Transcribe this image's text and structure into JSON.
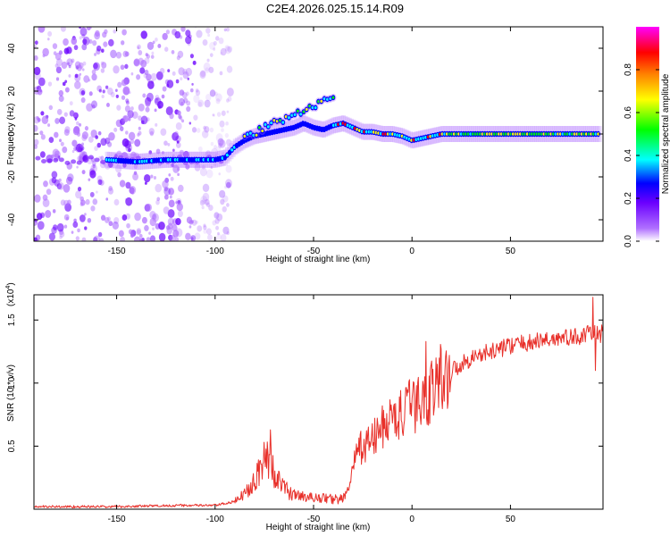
{
  "page": {
    "title": "C2E4.2026.025.15.14.R09"
  },
  "chart_data": [
    {
      "type": "heatmap",
      "title": "C2E4.2026.025.15.14.R09",
      "xlabel": "Height of straight line (km)",
      "ylabel": "Frequency (Hz)",
      "xlim": [
        -192,
        97
      ],
      "ylim": [
        -50,
        50
      ],
      "xticks": [
        -150,
        -100,
        -50,
        0,
        50
      ],
      "xtick_labels": [
        "-150",
        "-100",
        "-50",
        "0",
        "50"
      ],
      "yticks": [
        -40,
        -20,
        0,
        20,
        40
      ],
      "ytick_labels": [
        "-40",
        "-20",
        "0",
        "20",
        "40"
      ],
      "colorbar": {
        "label": "Normalized spectral amplitude",
        "range": [
          0,
          1
        ],
        "ticks": [
          0.0,
          0.2,
          0.4,
          0.6,
          0.8
        ],
        "tick_labels": [
          "0.0",
          "0.2",
          "0.4",
          "0.6",
          "0.8"
        ],
        "colormap": [
          "#ffffff",
          "#b070ff",
          "#6a00ff",
          "#0000ff",
          "#00ffff",
          "#00ff00",
          "#ffff00",
          "#ff8000",
          "#ff0000",
          "#ff00ff"
        ]
      },
      "ridge": {
        "x": [
          -155,
          -140,
          -125,
          -110,
          -100,
          -95,
          -90,
          -85,
          -80,
          -75,
          -70,
          -65,
          -60,
          -55,
          -50,
          -45,
          -40,
          -35,
          -30,
          -25,
          -20,
          -15,
          -10,
          -5,
          0,
          5,
          10,
          15,
          20,
          40,
          60,
          80,
          95
        ],
        "y": [
          -12,
          -13,
          -12,
          -12,
          -12,
          -11,
          -6,
          -3,
          -1,
          0,
          1,
          2,
          3,
          5,
          3,
          2,
          4,
          5,
          3,
          1,
          1,
          0,
          0,
          -1,
          -3,
          -2,
          -1,
          0,
          0,
          0,
          0,
          0,
          0
        ]
      },
      "upper_branch": {
        "x": [
          -85,
          -80,
          -75,
          -70,
          -65,
          -60,
          -55,
          -50,
          -45,
          -40
        ],
        "y": [
          -2,
          0,
          3,
          5,
          7,
          9,
          11,
          13,
          15,
          17
        ]
      },
      "noise_region_x": [
        -192,
        -100
      ]
    },
    {
      "type": "line",
      "xlabel": "Height of straight line (km)",
      "ylabel": "SNR (10 * v/v)",
      "y_multiplier": "(x10",
      "y_multiplier_exp": "4",
      "y_multiplier_close": ")",
      "xlim": [
        -192,
        97
      ],
      "ylim": [
        0,
        1.7
      ],
      "xticks": [
        -150,
        -100,
        -50,
        0,
        50
      ],
      "xtick_labels": [
        "-150",
        "-100",
        "-50",
        "0",
        "50"
      ],
      "yticks": [
        0.5,
        1.0,
        1.5
      ],
      "ytick_labels": [
        "0.5",
        "1.0",
        "1.5"
      ],
      "line_color": "#e8302a",
      "envelope": {
        "x": [
          -192,
          -150,
          -120,
          -100,
          -90,
          -85,
          -80,
          -76,
          -73,
          -70,
          -67,
          -63,
          -60,
          -55,
          -50,
          -45,
          -40,
          -36,
          -33,
          -31,
          -28,
          -25,
          -20,
          -15,
          -10,
          -5,
          0,
          5,
          10,
          15,
          20,
          25,
          30,
          40,
          50,
          60,
          70,
          80,
          88,
          92,
          95,
          97
        ],
        "y": [
          0.02,
          0.02,
          0.03,
          0.03,
          0.06,
          0.12,
          0.25,
          0.35,
          0.42,
          0.3,
          0.2,
          0.14,
          0.12,
          0.1,
          0.09,
          0.09,
          0.08,
          0.08,
          0.12,
          0.25,
          0.45,
          0.5,
          0.55,
          0.65,
          0.72,
          0.75,
          0.82,
          0.85,
          0.95,
          1.05,
          1.1,
          1.15,
          1.2,
          1.25,
          1.3,
          1.32,
          1.35,
          1.36,
          1.38,
          1.4,
          1.38,
          1.4
        ]
      },
      "spikes": [
        {
          "x": -72,
          "y": 0.63
        },
        {
          "x": 7,
          "y": 1.33
        },
        {
          "x": 13,
          "y": 1.15
        },
        {
          "x": 92,
          "y": 1.68
        },
        {
          "x": 93,
          "y": 1.1
        }
      ]
    }
  ]
}
